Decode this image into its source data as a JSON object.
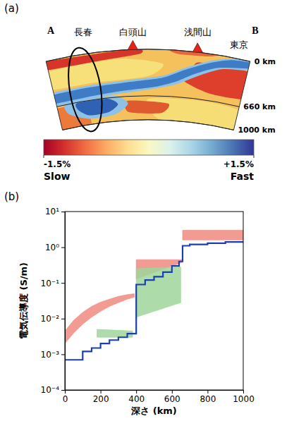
{
  "chart_data": [
    {
      "type": "cross_section",
      "title": "(a)",
      "ends": [
        "A",
        "B"
      ],
      "places": [
        {
          "label": "長春",
          "marker": "ellipse"
        },
        {
          "label": "白頭山",
          "marker": "triangle"
        },
        {
          "label": "浅間山",
          "marker": "triangle"
        },
        {
          "label": "東京"
        }
      ],
      "depth_ticks": [
        {
          "value": 0,
          "label": "0 km"
        },
        {
          "value": 660,
          "label": "660 km"
        },
        {
          "value": 1000,
          "label": "1000 km"
        }
      ],
      "colorbar": {
        "range": [
          -1.5,
          1.5
        ],
        "ticks": [
          {
            "value": -1.5,
            "label": "-1.5%"
          },
          {
            "value": 1.5,
            "label": "+1.5%"
          }
        ],
        "labels": [
          "Slow",
          "Fast"
        ]
      }
    },
    {
      "type": "line",
      "title": "(b)",
      "x_label": "深さ (km)",
      "y_label": "電気伝導度 (S/m)",
      "log": "y",
      "xlim": [
        0,
        1000
      ],
      "xticks": [
        0,
        200,
        400,
        600,
        800,
        1000
      ],
      "ylim": [
        0.0001,
        10
      ],
      "yticks": [
        {
          "value": 0.0001,
          "label": "10⁻⁴"
        },
        {
          "value": 0.001,
          "label": "10⁻³"
        },
        {
          "value": 0.01,
          "label": "10⁻²"
        },
        {
          "value": 0.1,
          "label": "10⁻¹"
        },
        {
          "value": 1,
          "label": "10⁰"
        },
        {
          "value": 10,
          "label": "10¹"
        }
      ],
      "series": [
        {
          "type": "area",
          "color": "#f08a80",
          "x": [
            0,
            50,
            100,
            150,
            200,
            250,
            300,
            350,
            390
          ],
          "lower": [
            0.002,
            0.004,
            0.007,
            0.011,
            0.016,
            0.022,
            0.028,
            0.035,
            0.04
          ],
          "upper": [
            0.0045,
            0.009,
            0.015,
            0.022,
            0.029,
            0.035,
            0.042,
            0.047,
            0.05
          ]
        },
        {
          "type": "area",
          "color": "#f08a80",
          "x": [
            400,
            660
          ],
          "lower": [
            0.13,
            0.38
          ],
          "upper": [
            0.45,
            0.45
          ]
        },
        {
          "type": "area",
          "color": "#f08a80",
          "x": [
            660,
            1000
          ],
          "lower": [
            1.6,
            1.6
          ],
          "upper": [
            3,
            3
          ]
        },
        {
          "type": "area",
          "color": "#9fd69b",
          "x": [
            180,
            380
          ],
          "lower": [
            0.003,
            0.003
          ],
          "upper": [
            0.005,
            0.0045
          ]
        },
        {
          "type": "area",
          "color": "#9fd69b",
          "x": [
            400,
            650
          ],
          "lower": [
            0.011,
            0.028
          ],
          "upper": [
            0.25,
            0.28
          ]
        },
        {
          "type": "line",
          "line_style": "step",
          "color": "#1c3fae",
          "x": [
            0,
            100,
            150,
            200,
            250,
            300,
            350,
            400,
            450,
            500,
            550,
            600,
            640,
            660,
            700,
            800,
            900,
            1000
          ],
          "values": [
            0.0007,
            0.0012,
            0.0015,
            0.002,
            0.0025,
            0.003,
            0.0038,
            0.09,
            0.12,
            0.15,
            0.2,
            0.3,
            0.4,
            1.1,
            1.2,
            1.3,
            1.4,
            1.5
          ]
        }
      ]
    }
  ]
}
